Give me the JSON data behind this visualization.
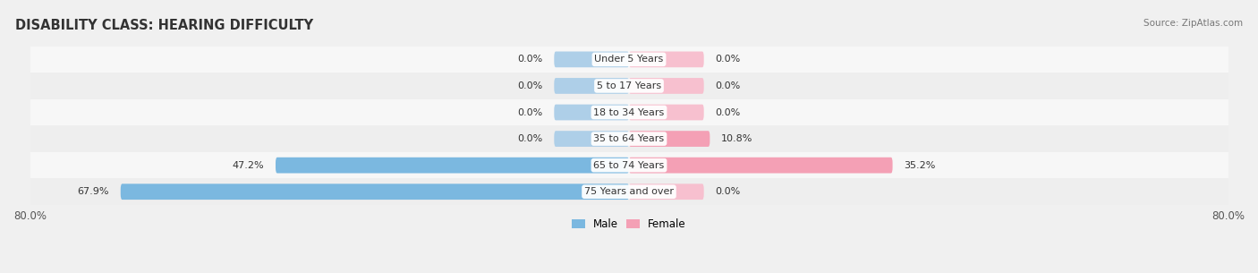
{
  "title": "DISABILITY CLASS: HEARING DIFFICULTY",
  "source_text": "Source: ZipAtlas.com",
  "categories": [
    "Under 5 Years",
    "5 to 17 Years",
    "18 to 34 Years",
    "35 to 64 Years",
    "65 to 74 Years",
    "75 Years and over"
  ],
  "male_values": [
    0.0,
    0.0,
    0.0,
    0.0,
    47.2,
    67.9
  ],
  "female_values": [
    0.0,
    0.0,
    0.0,
    10.8,
    35.2,
    0.0
  ],
  "male_stub": 10.0,
  "female_stub": 10.0,
  "x_max": 80.0,
  "male_color": "#7bb8e0",
  "female_color": "#f4a0b5",
  "male_stub_color": "#aecfe8",
  "female_stub_color": "#f7c0cf",
  "row_colors": [
    "#f7f7f7",
    "#eeeeee"
  ],
  "label_color": "#333333",
  "title_fontsize": 10.5,
  "source_fontsize": 7.5,
  "axis_label_fontsize": 8.5,
  "value_fontsize": 8,
  "category_fontsize": 8,
  "legend_fontsize": 8.5,
  "bar_height": 0.6,
  "fig_bg_color": "#f0f0f0"
}
